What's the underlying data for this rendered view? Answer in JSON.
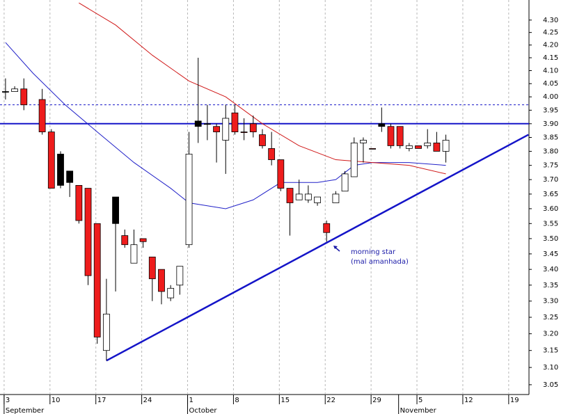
{
  "chart_data": {
    "type": "candlestick",
    "log_scale": true,
    "xlim": [
      -0.6,
      57.06
    ],
    "ylim": [
      3.022,
      4.382
    ],
    "yticks": [
      3.05,
      {
        "value": 3.1,
        "label": "3.10"
      },
      3.15,
      {
        "value": 3.2,
        "label": "3.20"
      },
      3.25,
      {
        "value": 3.3,
        "label": "3.30"
      },
      3.35,
      {
        "value": 3.4,
        "label": "3.40"
      },
      3.45,
      {
        "value": 3.5,
        "label": "3.50"
      },
      3.55,
      {
        "value": 3.6,
        "label": "3.60"
      },
      3.65,
      {
        "value": 3.7,
        "label": "3.70"
      },
      3.75,
      {
        "value": 3.8,
        "label": "3.80"
      },
      3.85,
      {
        "value": 3.9,
        "label": "3.90"
      },
      3.95,
      {
        "value": 4.0,
        "label": "4.00"
      },
      4.05,
      {
        "value": 4.1,
        "label": "4.10"
      },
      4.15,
      {
        "value": 4.2,
        "label": "4.20"
      },
      4.25,
      {
        "value": 4.3,
        "label": "4.30"
      }
    ],
    "xticks": [
      {
        "value": 0,
        "label": "3"
      },
      {
        "value": 5,
        "label": "10"
      },
      {
        "value": 10,
        "label": "17"
      },
      {
        "value": 15,
        "label": "24"
      },
      {
        "value": 20,
        "label": "1"
      },
      {
        "value": 25,
        "label": "8"
      },
      {
        "value": 30,
        "label": "15"
      },
      {
        "value": 35,
        "label": "22"
      },
      {
        "value": 40,
        "label": "29"
      },
      {
        "value": 45,
        "label": "5"
      },
      {
        "value": 50,
        "label": "12"
      },
      {
        "value": 55,
        "label": "19"
      }
    ],
    "month_labels": [
      {
        "value": 0,
        "label": "September"
      },
      {
        "value": 20,
        "label": "October"
      },
      {
        "value": 43,
        "label": "November"
      }
    ],
    "grid": true,
    "candles": {
      "x": [
        0,
        1,
        2,
        4,
        5,
        6,
        7,
        8,
        9,
        10,
        11,
        12,
        13,
        14,
        15,
        16,
        17,
        18,
        19,
        20,
        21,
        22,
        23,
        24,
        25,
        26,
        27,
        28,
        29,
        30,
        31,
        32,
        33,
        34,
        35,
        36,
        37,
        38,
        39,
        40,
        41,
        42,
        43,
        44,
        45,
        46,
        47,
        48
      ],
      "open": [
        4.02,
        4.02,
        4.03,
        3.99,
        3.87,
        3.79,
        3.73,
        3.68,
        3.67,
        3.55,
        3.15,
        3.64,
        3.51,
        3.42,
        3.5,
        3.44,
        3.4,
        3.31,
        3.35,
        3.48,
        3.91,
        3.9,
        3.89,
        3.84,
        3.94,
        3.87,
        3.9,
        3.86,
        3.81,
        3.77,
        3.67,
        3.63,
        3.63,
        3.62,
        3.55,
        3.62,
        3.66,
        3.71,
        3.83,
        3.81,
        3.9,
        3.89,
        3.89,
        3.81,
        3.82,
        3.82,
        3.83,
        3.8
      ],
      "high": [
        4.07,
        4.04,
        4.07,
        4.03,
        3.88,
        3.8,
        3.73,
        3.68,
        3.67,
        3.55,
        3.37,
        3.64,
        3.53,
        3.53,
        3.5,
        3.44,
        3.4,
        3.35,
        3.41,
        3.87,
        4.15,
        3.97,
        3.9,
        3.97,
        3.97,
        3.92,
        3.93,
        3.88,
        3.87,
        3.77,
        3.67,
        3.7,
        3.68,
        3.64,
        3.56,
        3.66,
        3.73,
        3.85,
        3.85,
        3.81,
        3.96,
        3.9,
        3.89,
        3.83,
        3.82,
        3.88,
        3.87,
        3.86
      ],
      "low": [
        3.99,
        4.02,
        3.95,
        3.86,
        3.67,
        3.67,
        3.64,
        3.55,
        3.35,
        3.17,
        3.12,
        3.33,
        3.47,
        3.42,
        3.47,
        3.3,
        3.29,
        3.3,
        3.32,
        3.47,
        3.83,
        3.84,
        3.76,
        3.72,
        3.86,
        3.84,
        3.85,
        3.81,
        3.75,
        3.66,
        3.51,
        3.63,
        3.62,
        3.61,
        3.49,
        3.62,
        3.66,
        3.71,
        3.76,
        3.81,
        3.87,
        3.81,
        3.81,
        3.8,
        3.81,
        3.81,
        3.8,
        3.76
      ],
      "close": [
        4.02,
        4.03,
        3.97,
        3.87,
        3.67,
        3.68,
        3.69,
        3.56,
        3.38,
        3.19,
        3.26,
        3.55,
        3.48,
        3.48,
        3.49,
        3.37,
        3.33,
        3.34,
        3.41,
        3.79,
        3.89,
        3.9,
        3.87,
        3.92,
        3.87,
        3.87,
        3.87,
        3.82,
        3.77,
        3.67,
        3.62,
        3.65,
        3.65,
        3.64,
        3.52,
        3.65,
        3.72,
        3.83,
        3.84,
        3.81,
        3.89,
        3.82,
        3.82,
        3.82,
        3.81,
        3.83,
        3.8,
        3.84
      ],
      "colors": [
        "#000000",
        "#ffffff",
        "#ee1c1c",
        "#ee1c1c",
        "#ee1c1c",
        "#000000",
        "#000000",
        "#ee1c1c",
        "#ee1c1c",
        "#ee1c1c",
        "#ffffff",
        "#000000",
        "#ee1c1c",
        "#ffffff",
        "#ee1c1c",
        "#ee1c1c",
        "#ee1c1c",
        "#ffffff",
        "#ffffff",
        "#ffffff",
        "#000000",
        "#000000",
        "#ee1c1c",
        "#ffffff",
        "#ee1c1c",
        "#ee1c1c",
        "#ee1c1c",
        "#ee1c1c",
        "#ee1c1c",
        "#ee1c1c",
        "#ee1c1c",
        "#ffffff",
        "#ffffff",
        "#ffffff",
        "#ee1c1c",
        "#ffffff",
        "#ffffff",
        "#ffffff",
        "#ffffff",
        "#ee1c1c",
        "#000000",
        "#ee1c1c",
        "#ee1c1c",
        "#ffffff",
        "#ee1c1c",
        "#ffffff",
        "#ee1c1c",
        "#ffffff"
      ]
    },
    "lines": [
      {
        "color": "#2020c8",
        "x": [
          0,
          3,
          6.5,
          10,
          14,
          18,
          20,
          24,
          27,
          30,
          34,
          36,
          38,
          40,
          44,
          48
        ],
        "values": [
          4.21,
          4.09,
          3.97,
          3.87,
          3.76,
          3.67,
          3.62,
          3.6,
          3.63,
          3.69,
          3.69,
          3.7,
          3.75,
          3.76,
          3.76,
          3.75
        ]
      },
      {
        "color": "#d01818",
        "x": [
          8,
          12,
          16,
          20,
          24,
          28,
          32,
          36,
          40,
          44,
          48
        ],
        "values": [
          4.37,
          4.28,
          4.16,
          4.06,
          4.0,
          3.9,
          3.82,
          3.77,
          3.76,
          3.75,
          3.72
        ]
      }
    ],
    "hlines": [
      {
        "value": 3.9,
        "color": "#1414c8",
        "style": "solid"
      },
      {
        "value": 3.97,
        "color": "#1414c8",
        "style": "dashed"
      }
    ],
    "trendline": {
      "color": "#1414c8",
      "x": [
        11,
        57
      ],
      "values": [
        3.12,
        3.86
      ]
    },
    "annotation": [
      "morning star",
      "(mal amanhada)"
    ]
  }
}
